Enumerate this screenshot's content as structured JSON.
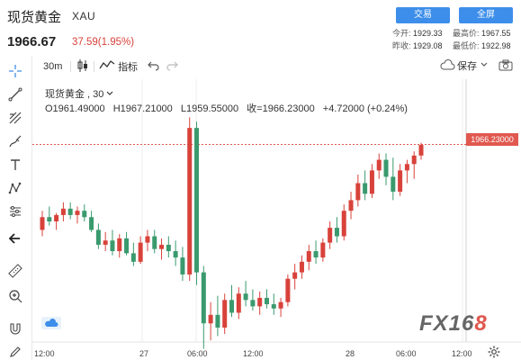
{
  "header": {
    "title": "现货黄金",
    "symbol": "XAU",
    "price": "1966.67",
    "change": "37.59(1.95%)",
    "buttons": {
      "trade": "交易",
      "fullscreen": "全屏"
    },
    "stats": {
      "open_label": "今开:",
      "open_value": "1929.33",
      "high_label": "最高价:",
      "high_value": "1967.55",
      "prev_label": "昨收:",
      "prev_value": "1929.08",
      "low_label": "最低价:",
      "low_value": "1922.98"
    }
  },
  "toolbar": {
    "interval": "30m",
    "indicators": "指标",
    "save": "保存"
  },
  "legend": {
    "title": "现货黄金 , 30",
    "open": "O1961.49000",
    "high": "H1967.21000",
    "low": "L1959.55000",
    "close": "收=1966.23000",
    "change": "+4.72000 (+0.24%)"
  },
  "price_tag": "1966.23000",
  "watermark": {
    "pre": "FX16",
    "accent": "8"
  },
  "x_axis_labels": [
    "12:00",
    "27",
    "06:00",
    "12:00",
    "28",
    "06:00",
    "12:00"
  ],
  "colors": {
    "up": "#d8423a",
    "down": "#3a9a6e",
    "accent": "#3d8eea"
  },
  "chart_data": {
    "type": "candlestick",
    "x_labels": [
      "12:00",
      "27",
      "06:00",
      "12:00",
      "28",
      "06:00",
      "12:00"
    ],
    "ylim": [
      1880,
      1980
    ],
    "current_price": 1966.23,
    "candles": [
      {
        "o": 1926,
        "h": 1935,
        "l": 1923,
        "c": 1932
      },
      {
        "o": 1932,
        "h": 1937,
        "l": 1928,
        "c": 1930
      },
      {
        "o": 1930,
        "h": 1934,
        "l": 1926,
        "c": 1933
      },
      {
        "o": 1933,
        "h": 1939,
        "l": 1930,
        "c": 1936
      },
      {
        "o": 1936,
        "h": 1939,
        "l": 1931,
        "c": 1933
      },
      {
        "o": 1933,
        "h": 1937,
        "l": 1929,
        "c": 1935
      },
      {
        "o": 1935,
        "h": 1938,
        "l": 1930,
        "c": 1932
      },
      {
        "o": 1932,
        "h": 1935,
        "l": 1925,
        "c": 1926
      },
      {
        "o": 1926,
        "h": 1929,
        "l": 1917,
        "c": 1919
      },
      {
        "o": 1919,
        "h": 1925,
        "l": 1916,
        "c": 1921
      },
      {
        "o": 1921,
        "h": 1926,
        "l": 1914,
        "c": 1916
      },
      {
        "o": 1916,
        "h": 1924,
        "l": 1913,
        "c": 1922
      },
      {
        "o": 1922,
        "h": 1925,
        "l": 1914,
        "c": 1915
      },
      {
        "o": 1915,
        "h": 1920,
        "l": 1909,
        "c": 1911
      },
      {
        "o": 1911,
        "h": 1923,
        "l": 1910,
        "c": 1920
      },
      {
        "o": 1920,
        "h": 1926,
        "l": 1916,
        "c": 1923
      },
      {
        "o": 1923,
        "h": 1926,
        "l": 1915,
        "c": 1917
      },
      {
        "o": 1917,
        "h": 1922,
        "l": 1912,
        "c": 1919
      },
      {
        "o": 1919,
        "h": 1923,
        "l": 1913,
        "c": 1916
      },
      {
        "o": 1916,
        "h": 1921,
        "l": 1909,
        "c": 1913
      },
      {
        "o": 1913,
        "h": 1918,
        "l": 1902,
        "c": 1905
      },
      {
        "o": 1905,
        "h": 1979,
        "l": 1902,
        "c": 1974
      },
      {
        "o": 1974,
        "h": 1977,
        "l": 1900,
        "c": 1906
      },
      {
        "o": 1906,
        "h": 1909,
        "l": 1870,
        "c": 1882
      },
      {
        "o": 1882,
        "h": 1892,
        "l": 1874,
        "c": 1886
      },
      {
        "o": 1886,
        "h": 1895,
        "l": 1876,
        "c": 1880
      },
      {
        "o": 1880,
        "h": 1896,
        "l": 1877,
        "c": 1893
      },
      {
        "o": 1893,
        "h": 1900,
        "l": 1885,
        "c": 1887
      },
      {
        "o": 1887,
        "h": 1899,
        "l": 1884,
        "c": 1896
      },
      {
        "o": 1896,
        "h": 1902,
        "l": 1890,
        "c": 1893
      },
      {
        "o": 1893,
        "h": 1898,
        "l": 1888,
        "c": 1890
      },
      {
        "o": 1890,
        "h": 1897,
        "l": 1886,
        "c": 1894
      },
      {
        "o": 1894,
        "h": 1898,
        "l": 1889,
        "c": 1891
      },
      {
        "o": 1891,
        "h": 1896,
        "l": 1886,
        "c": 1889
      },
      {
        "o": 1889,
        "h": 1894,
        "l": 1885,
        "c": 1892
      },
      {
        "o": 1892,
        "h": 1905,
        "l": 1890,
        "c": 1903
      },
      {
        "o": 1903,
        "h": 1910,
        "l": 1898,
        "c": 1906
      },
      {
        "o": 1906,
        "h": 1914,
        "l": 1903,
        "c": 1911
      },
      {
        "o": 1911,
        "h": 1919,
        "l": 1907,
        "c": 1916
      },
      {
        "o": 1916,
        "h": 1921,
        "l": 1910,
        "c": 1913
      },
      {
        "o": 1913,
        "h": 1922,
        "l": 1911,
        "c": 1920
      },
      {
        "o": 1920,
        "h": 1930,
        "l": 1917,
        "c": 1927
      },
      {
        "o": 1927,
        "h": 1932,
        "l": 1920,
        "c": 1923
      },
      {
        "o": 1923,
        "h": 1938,
        "l": 1921,
        "c": 1935
      },
      {
        "o": 1935,
        "h": 1944,
        "l": 1931,
        "c": 1940
      },
      {
        "o": 1940,
        "h": 1952,
        "l": 1937,
        "c": 1948
      },
      {
        "o": 1948,
        "h": 1954,
        "l": 1940,
        "c": 1943
      },
      {
        "o": 1943,
        "h": 1957,
        "l": 1941,
        "c": 1954
      },
      {
        "o": 1954,
        "h": 1962,
        "l": 1950,
        "c": 1959
      },
      {
        "o": 1959,
        "h": 1962,
        "l": 1947,
        "c": 1951
      },
      {
        "o": 1951,
        "h": 1960,
        "l": 1940,
        "c": 1944
      },
      {
        "o": 1944,
        "h": 1957,
        "l": 1942,
        "c": 1954
      },
      {
        "o": 1954,
        "h": 1959,
        "l": 1948,
        "c": 1957
      },
      {
        "o": 1957,
        "h": 1963,
        "l": 1950,
        "c": 1961
      },
      {
        "o": 1961,
        "h": 1967,
        "l": 1959,
        "c": 1966
      }
    ]
  }
}
